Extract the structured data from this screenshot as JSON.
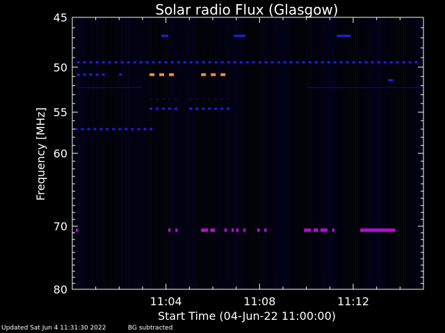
{
  "chart_data": {
    "type": "heatmap",
    "title": "Solar radio Flux (Glasgow)",
    "xlabel": "Start Time (04-Jun-22 11:00:00)",
    "ylabel": "Frequency [MHz]",
    "x_range_minutes": [
      0,
      15
    ],
    "y_range_mhz": [
      45,
      80
    ],
    "y_scale": "log",
    "y_ticks": [
      45,
      50,
      55,
      60,
      70,
      80
    ],
    "x_ticks": [
      {
        "minute": 4,
        "label": "11:04"
      },
      {
        "minute": 8,
        "label": "11:08"
      },
      {
        "minute": 12,
        "label": "11:12"
      }
    ],
    "grid": false,
    "background_color": "#000008",
    "colors": {
      "low": "#0a0a40",
      "mid": "#2020e8",
      "purple": "#b010c8",
      "high": "#ff9030"
    },
    "features": [
      {
        "freq_mhz": 46.8,
        "segments": [
          [
            3.8,
            4.1
          ],
          [
            6.9,
            7.4
          ],
          [
            11.3,
            11.9
          ]
        ],
        "level": "mid"
      },
      {
        "freq_mhz": 49.5,
        "segments": [
          [
            0.2,
            15.0
          ]
        ],
        "level": "mid",
        "dashed": true
      },
      {
        "freq_mhz": 50.8,
        "segments": [
          [
            0.2,
            1.5
          ],
          [
            2.0,
            2.2
          ]
        ],
        "level": "mid",
        "dashed": true
      },
      {
        "freq_mhz": 50.8,
        "segments": [
          [
            3.3,
            4.5
          ],
          [
            5.5,
            6.8
          ]
        ],
        "level": "high",
        "dashed": true
      },
      {
        "freq_mhz": 51.4,
        "segments": [
          [
            13.5,
            13.7
          ]
        ],
        "level": "mid"
      },
      {
        "freq_mhz": 52.2,
        "segments": [
          [
            0.2,
            3.0
          ],
          [
            10.0,
            15.0
          ]
        ],
        "level": "low"
      },
      {
        "freq_mhz": 53.5,
        "segments": [
          [
            3.3,
            4.5
          ],
          [
            5.0,
            6.8
          ]
        ],
        "level": "low",
        "dashed": true
      },
      {
        "freq_mhz": 54.6,
        "segments": [
          [
            3.3,
            4.5
          ],
          [
            5.0,
            6.8
          ]
        ],
        "level": "mid",
        "dashed": true
      },
      {
        "freq_mhz": 57.0,
        "segments": [
          [
            0.1,
            3.6
          ]
        ],
        "level": "mid",
        "dashed": true
      },
      {
        "freq_mhz": 70.6,
        "segments": [
          [
            0.15,
            0.25
          ],
          [
            4.1,
            4.2
          ],
          [
            4.4,
            4.5
          ],
          [
            5.5,
            5.8
          ],
          [
            5.9,
            6.1
          ],
          [
            6.5,
            6.6
          ],
          [
            6.8,
            6.9
          ],
          [
            7.0,
            7.1
          ],
          [
            7.3,
            7.4
          ],
          [
            7.9,
            8.0
          ],
          [
            8.2,
            8.3
          ],
          [
            9.9,
            10.2
          ],
          [
            10.3,
            10.5
          ],
          [
            10.6,
            10.9
          ],
          [
            11.1,
            11.2
          ],
          [
            12.3,
            13.8
          ]
        ],
        "level": "purple"
      }
    ]
  },
  "footer": {
    "updated": "Updated Sat Jun  4 11:31:30 2022",
    "note": "BG subtracted"
  }
}
